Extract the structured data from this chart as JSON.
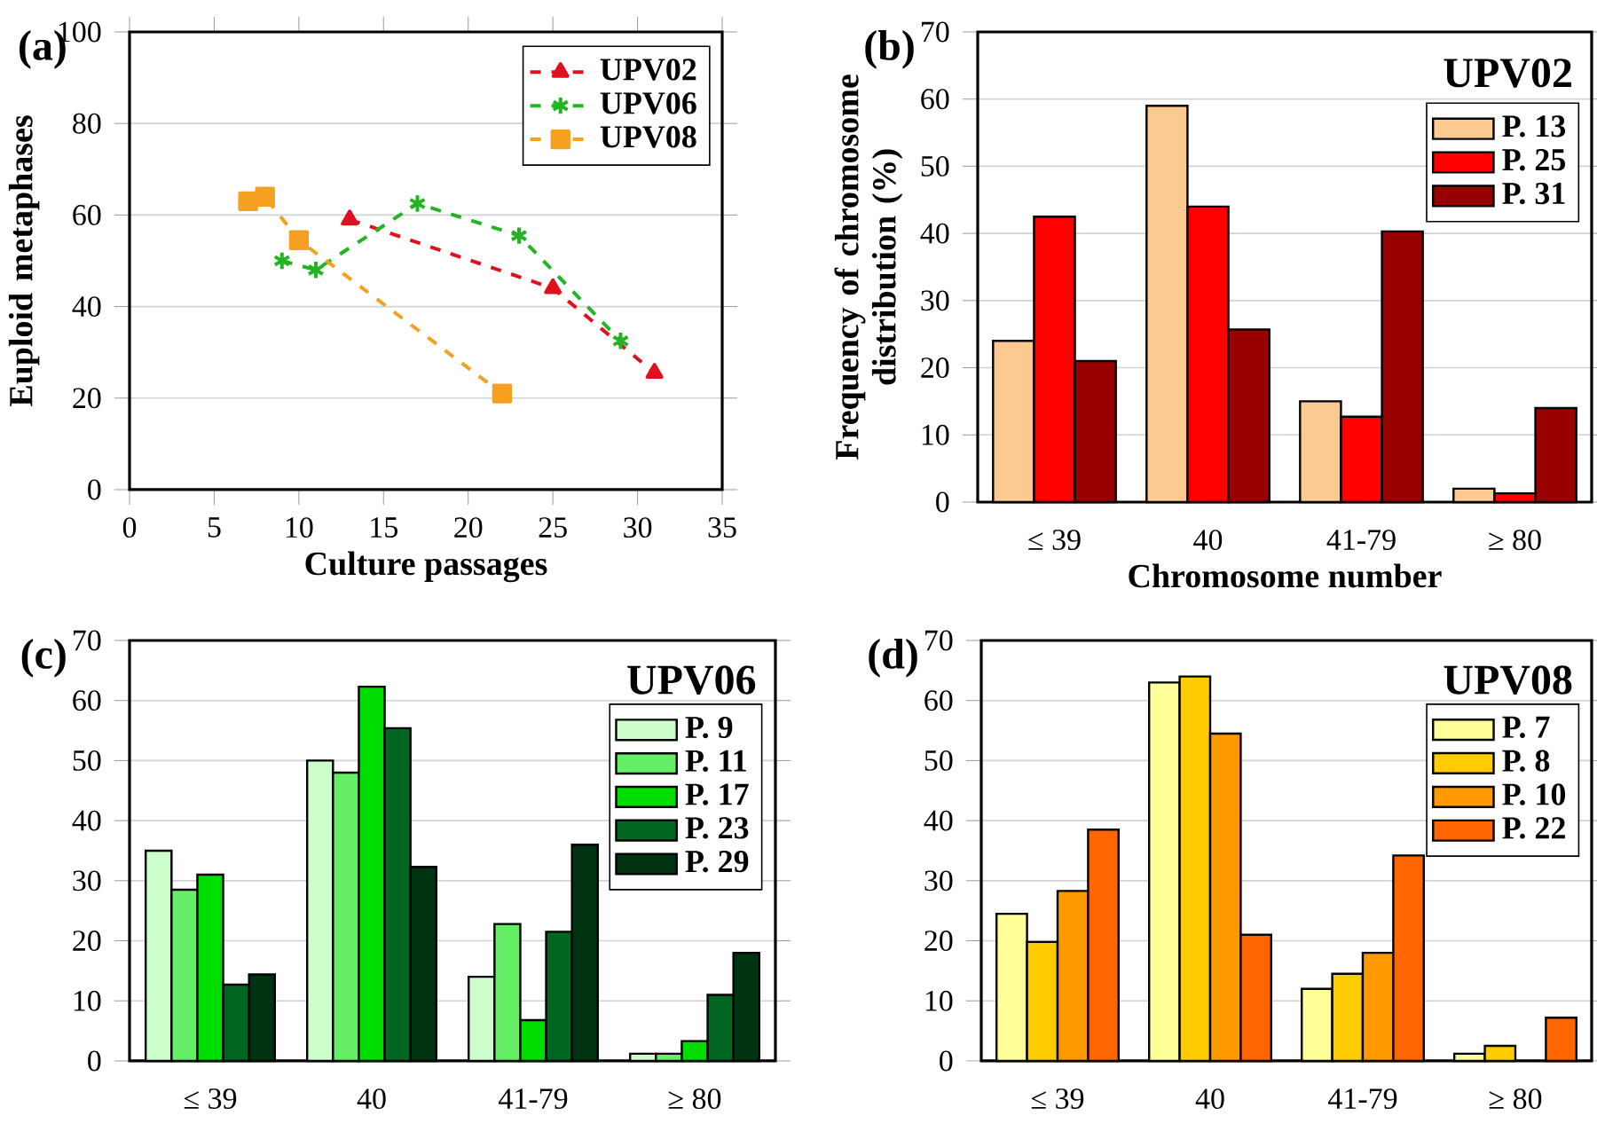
{
  "chart_data": [
    {
      "type": "line",
      "annotations": [
        "(a)"
      ],
      "xlabel": "Culture passages",
      "ylabel": "Euploid metaphases",
      "xlim": [
        0,
        35
      ],
      "xticks": [
        0,
        5,
        10,
        15,
        20,
        25,
        30,
        35
      ],
      "ylim": [
        0,
        100
      ],
      "yticks": [
        0,
        20,
        40,
        60,
        80,
        100
      ],
      "grid": "y",
      "legend": "top right",
      "line_style": "dashed",
      "series": [
        {
          "name": "UPV02",
          "color": "#e0101e",
          "marker": "triangle",
          "x": [
            13,
            25,
            31
          ],
          "values": [
            59,
            44,
            25.5
          ]
        },
        {
          "name": "UPV06",
          "color": "#22b422",
          "marker": "cross",
          "x": [
            9,
            11,
            17,
            23,
            29
          ],
          "values": [
            50,
            48,
            62.5,
            55.5,
            32.5
          ]
        },
        {
          "name": "UPV08",
          "color": "#f5a020",
          "marker": "square",
          "x": [
            7,
            8,
            10,
            22
          ],
          "values": [
            63,
            64,
            54.5,
            21
          ]
        }
      ]
    },
    {
      "type": "bar",
      "title": "UPV02",
      "annotations": [
        "(b)"
      ],
      "xlabel": "Chromosome number",
      "ylabel": "Frequency of chromosome distribution (%)",
      "categories": [
        "≤ 39",
        "40",
        "41-79",
        "≥ 80"
      ],
      "ylim": [
        0,
        70
      ],
      "yticks": [
        0,
        10,
        20,
        30,
        40,
        50,
        60,
        70
      ],
      "grid": "y",
      "legend": "top right",
      "series": [
        {
          "name": "P. 13",
          "color": "#fcc990",
          "values": [
            24,
            59,
            15,
            2
          ]
        },
        {
          "name": "P. 25",
          "color": "#ff0000",
          "values": [
            42.5,
            44,
            12.7,
            1.3
          ]
        },
        {
          "name": "P. 31",
          "color": "#990000",
          "values": [
            21,
            25.7,
            40.3,
            14
          ]
        }
      ]
    },
    {
      "type": "bar",
      "title": "UPV06",
      "annotations": [
        "(c)"
      ],
      "categories": [
        "≤ 39",
        "40",
        "41-79",
        "≥ 80"
      ],
      "ylim": [
        0,
        70
      ],
      "yticks": [
        0,
        10,
        20,
        30,
        40,
        50,
        60,
        70
      ],
      "grid": "y",
      "legend": "top right",
      "series": [
        {
          "name": "P. 9",
          "color": "#ccffcc",
          "values": [
            35,
            50,
            14,
            1.2
          ]
        },
        {
          "name": "P. 11",
          "color": "#66ee66",
          "values": [
            28.5,
            48,
            22.8,
            1.2
          ]
        },
        {
          "name": "P. 17",
          "color": "#00dd00",
          "values": [
            31,
            62.3,
            6.8,
            3.3
          ]
        },
        {
          "name": "P. 23",
          "color": "#006622",
          "values": [
            12.7,
            55.4,
            21.5,
            11
          ]
        },
        {
          "name": "P. 29",
          "color": "#003311",
          "values": [
            14.4,
            32.3,
            36,
            18
          ]
        }
      ]
    },
    {
      "type": "bar",
      "title": "UPV08",
      "annotations": [
        "(d)"
      ],
      "categories": [
        "≤ 39",
        "40",
        "41-79",
        "≥ 80"
      ],
      "ylim": [
        0,
        70
      ],
      "yticks": [
        0,
        10,
        20,
        30,
        40,
        50,
        60,
        70
      ],
      "grid": "y",
      "legend": "top right",
      "series": [
        {
          "name": "P. 7",
          "color": "#ffff99",
          "values": [
            24.5,
            63,
            12,
            1.2
          ]
        },
        {
          "name": "P. 8",
          "color": "#ffcc00",
          "values": [
            19.8,
            64,
            14.5,
            2.5
          ]
        },
        {
          "name": "P. 10",
          "color": "#ff9900",
          "values": [
            28.3,
            54.5,
            18,
            null
          ]
        },
        {
          "name": "P. 22",
          "color": "#ff6600",
          "values": [
            38.5,
            21,
            34.2,
            7.2
          ]
        }
      ]
    }
  ]
}
